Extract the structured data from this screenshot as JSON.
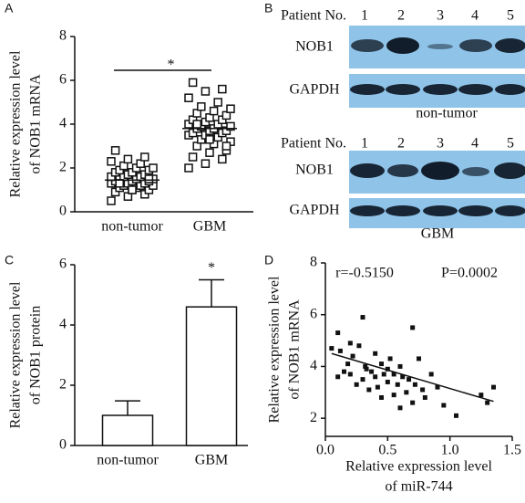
{
  "chart_data": [
    {
      "type": "strip",
      "panel_label": "A",
      "ylabel": [
        "Relative expression level",
        "of NOB1 mRNA"
      ],
      "categories": [
        "non-tumor",
        "GBM"
      ],
      "values": [
        [
          0.5,
          0.7,
          0.8,
          0.9,
          1.0,
          1.0,
          1.1,
          1.1,
          1.2,
          1.2,
          1.2,
          1.3,
          1.3,
          1.3,
          1.4,
          1.4,
          1.4,
          1.5,
          1.5,
          1.5,
          1.6,
          1.6,
          1.6,
          1.7,
          1.7,
          1.8,
          1.8,
          1.9,
          1.9,
          2.0,
          2.0,
          2.1,
          2.2,
          2.3,
          2.4,
          2.5,
          2.8,
          1.0,
          1.5,
          1.3
        ],
        [
          2.0,
          2.2,
          2.4,
          2.5,
          2.7,
          2.8,
          3.0,
          3.1,
          3.2,
          3.3,
          3.4,
          3.5,
          3.5,
          3.6,
          3.6,
          3.7,
          3.7,
          3.8,
          3.8,
          3.9,
          3.9,
          4.0,
          4.0,
          4.1,
          4.2,
          4.2,
          4.3,
          4.4,
          4.5,
          4.6,
          4.7,
          4.8,
          5.0,
          5.2,
          5.5,
          5.6,
          5.9,
          3.3,
          3.0,
          4.0
        ]
      ],
      "means": [
        1.45,
        3.8
      ],
      "significance": "*",
      "ylim": [
        0,
        8
      ],
      "yticks": [
        0,
        2,
        4,
        6,
        8
      ]
    },
    {
      "type": "bar",
      "panel_label": "C",
      "ylabel": [
        "Relative expression level",
        "of NOB1 protein"
      ],
      "categories": [
        "non-tumor",
        "GBM"
      ],
      "values": [
        1.0,
        4.6
      ],
      "errors": [
        0.48,
        0.9
      ],
      "significance": "*",
      "ylim": [
        0,
        6
      ],
      "yticks": [
        0,
        2,
        4,
        6
      ]
    },
    {
      "type": "scatter",
      "panel_label": "D",
      "ylabel": [
        "Relative expression level",
        "of NOB1 mRNA"
      ],
      "xlabel": [
        "Relative expression level",
        "of miR-744"
      ],
      "annotations": [
        "r=-0.5150",
        "P=0.0002"
      ],
      "x": [
        0.05,
        0.1,
        0.1,
        0.12,
        0.15,
        0.18,
        0.2,
        0.22,
        0.25,
        0.27,
        0.3,
        0.3,
        0.32,
        0.33,
        0.35,
        0.37,
        0.4,
        0.4,
        0.42,
        0.45,
        0.47,
        0.5,
        0.5,
        0.52,
        0.55,
        0.55,
        0.58,
        0.6,
        0.6,
        0.62,
        0.65,
        0.67,
        0.7,
        0.7,
        0.72,
        0.75,
        0.78,
        0.8,
        0.85,
        0.9,
        0.95,
        1.05,
        1.25,
        1.3,
        1.35,
        0.2,
        0.45
      ],
      "y": [
        4.7,
        3.6,
        5.3,
        4.6,
        3.8,
        4.1,
        3.7,
        4.4,
        3.3,
        4.8,
        3.5,
        5.9,
        4.0,
        3.9,
        3.1,
        3.8,
        4.5,
        3.6,
        3.2,
        4.1,
        3.7,
        3.9,
        3.4,
        4.3,
        2.9,
        3.7,
        3.3,
        2.4,
        4.0,
        3.6,
        3.0,
        3.5,
        5.5,
        2.6,
        3.3,
        4.3,
        3.1,
        2.8,
        3.7,
        3.2,
        2.5,
        2.1,
        2.9,
        2.6,
        3.2,
        4.9,
        2.8
      ],
      "trend_line": {
        "x": [
          0.05,
          1.35
        ],
        "y": [
          4.5,
          2.65
        ]
      },
      "xlim": [
        0,
        1.5
      ],
      "xticks": [
        {
          "value": 0,
          "label": "0.0"
        },
        0.5,
        {
          "value": 1,
          "label": "1.0"
        },
        1.5
      ],
      "ylim": [
        1.3,
        8
      ],
      "yticks": [
        2,
        4,
        6,
        8
      ]
    }
  ],
  "blot": {
    "panel_label": "B",
    "groups": [
      {
        "header": "Patient No.",
        "lanes": [
          "1",
          "2",
          "3",
          "4",
          "5"
        ],
        "rows": [
          "NOB1",
          "GAPDH"
        ],
        "caption": "non-tumor"
      },
      {
        "header": "Patient No.",
        "lanes": [
          "1",
          "2",
          "3",
          "4",
          "5"
        ],
        "rows": [
          "NOB1",
          "GAPDH"
        ],
        "caption": "GBM"
      }
    ]
  }
}
